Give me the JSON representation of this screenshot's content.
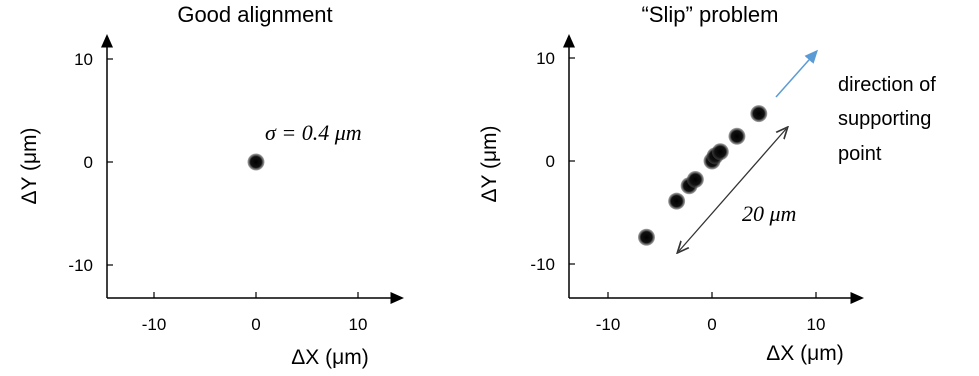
{
  "chart_data": [
    {
      "type": "scatter",
      "title": "Good alignment",
      "xlabel": "ΔX (μm)",
      "ylabel": "ΔY (μm)",
      "xlim": [
        -15,
        13
      ],
      "ylim": [
        -13,
        11
      ],
      "xticks": [
        -10,
        0,
        10
      ],
      "yticks": [
        10,
        0,
        -10
      ],
      "xtick_labels": [
        "-10",
        "0",
        "10"
      ],
      "ytick_labels": [
        "10",
        "0",
        "-10"
      ],
      "points": [
        {
          "x": 0,
          "y": 0
        }
      ],
      "annotations": [
        {
          "text": "σ = 0.4 μm"
        }
      ]
    },
    {
      "type": "scatter",
      "title": "“Slip” problem",
      "xlabel": "ΔX (μm)",
      "ylabel": "ΔY (μm)",
      "xlim": [
        -14,
        13
      ],
      "ylim": [
        -13,
        11
      ],
      "xticks": [
        -10,
        0,
        10
      ],
      "yticks": [
        10,
        0,
        -10
      ],
      "xtick_labels": [
        "-10",
        "0",
        "10"
      ],
      "ytick_labels": [
        "10",
        "0",
        "-10"
      ],
      "points": [
        {
          "x": -6.3,
          "y": -7.4
        },
        {
          "x": -3.4,
          "y": -3.9
        },
        {
          "x": -2.2,
          "y": -2.4
        },
        {
          "x": -1.6,
          "y": -1.8
        },
        {
          "x": 0.0,
          "y": 0.0
        },
        {
          "x": 0.3,
          "y": 0.5
        },
        {
          "x": 0.8,
          "y": 0.9
        },
        {
          "x": 2.4,
          "y": 2.4
        },
        {
          "x": 4.5,
          "y": 4.6
        }
      ],
      "annotations": [
        {
          "text": "20 μm"
        },
        {
          "text": "direction of"
        },
        {
          "text": "supporting"
        },
        {
          "text": "point"
        }
      ],
      "colors": {
        "direction_arrow": "#5b9bd5"
      }
    }
  ]
}
